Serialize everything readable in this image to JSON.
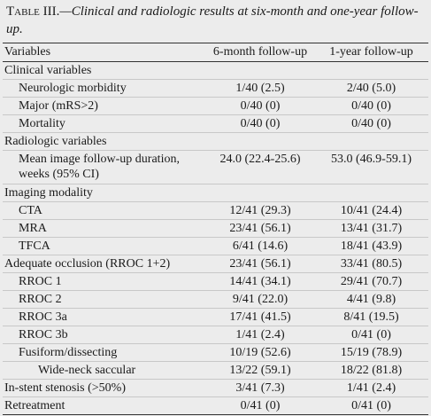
{
  "table": {
    "caption": {
      "label": "Table III.",
      "title": "—Clinical and radiologic results at six-month and one-year follow-up."
    },
    "header": [
      "Variables",
      "6-month follow-up",
      "1-year follow-up"
    ],
    "rows": [
      [
        "Clinical variables"
      ],
      [
        "Neurologic morbidity",
        "1/40 (2.5)",
        "2/40 (5.0)"
      ],
      [
        "Major (mRS>2)",
        "0/40 (0)",
        "0/40 (0)"
      ],
      [
        "Mortality",
        "0/40 (0)",
        "0/40 (0)"
      ],
      [
        "Radiologic variables"
      ],
      [
        "Mean image follow-up duration, weeks (95% CI)",
        "24.0 (22.4-25.6)",
        "53.0 (46.9-59.1)"
      ],
      [
        "Imaging modality"
      ],
      [
        "CTA",
        "12/41 (29.3)",
        "10/41 (24.4)"
      ],
      [
        "MRA",
        "23/41 (56.1)",
        "13/41 (31.7)"
      ],
      [
        "TFCA",
        "6/41 (14.6)",
        "18/41 (43.9)"
      ],
      [
        "Adequate occlusion (RROC 1+2)",
        "23/41 (56.1)",
        "33/41 (80.5)"
      ],
      [
        "RROC 1",
        "14/41 (34.1)",
        "29/41 (70.7)"
      ],
      [
        "RROC 2",
        "9/41 (22.0)",
        "4/41 (9.8)"
      ],
      [
        "RROC 3a",
        "17/41 (41.5)",
        "8/41 (19.5)"
      ],
      [
        "RROC 3b",
        "1/41 (2.4)",
        "0/41 (0)"
      ],
      [
        "Fusiform/dissecting",
        "10/19 (52.6)",
        "15/19 (78.9)"
      ],
      [
        "Wide-neck saccular",
        "13/22 (59.1)",
        "18/22 (81.8)"
      ],
      [
        "In-stent stenosis (>50%)",
        "3/41 (7.3)",
        "1/41 (2.4)"
      ],
      [
        "Retreatment",
        "0/41 (0)",
        "0/41 (0)"
      ]
    ]
  }
}
